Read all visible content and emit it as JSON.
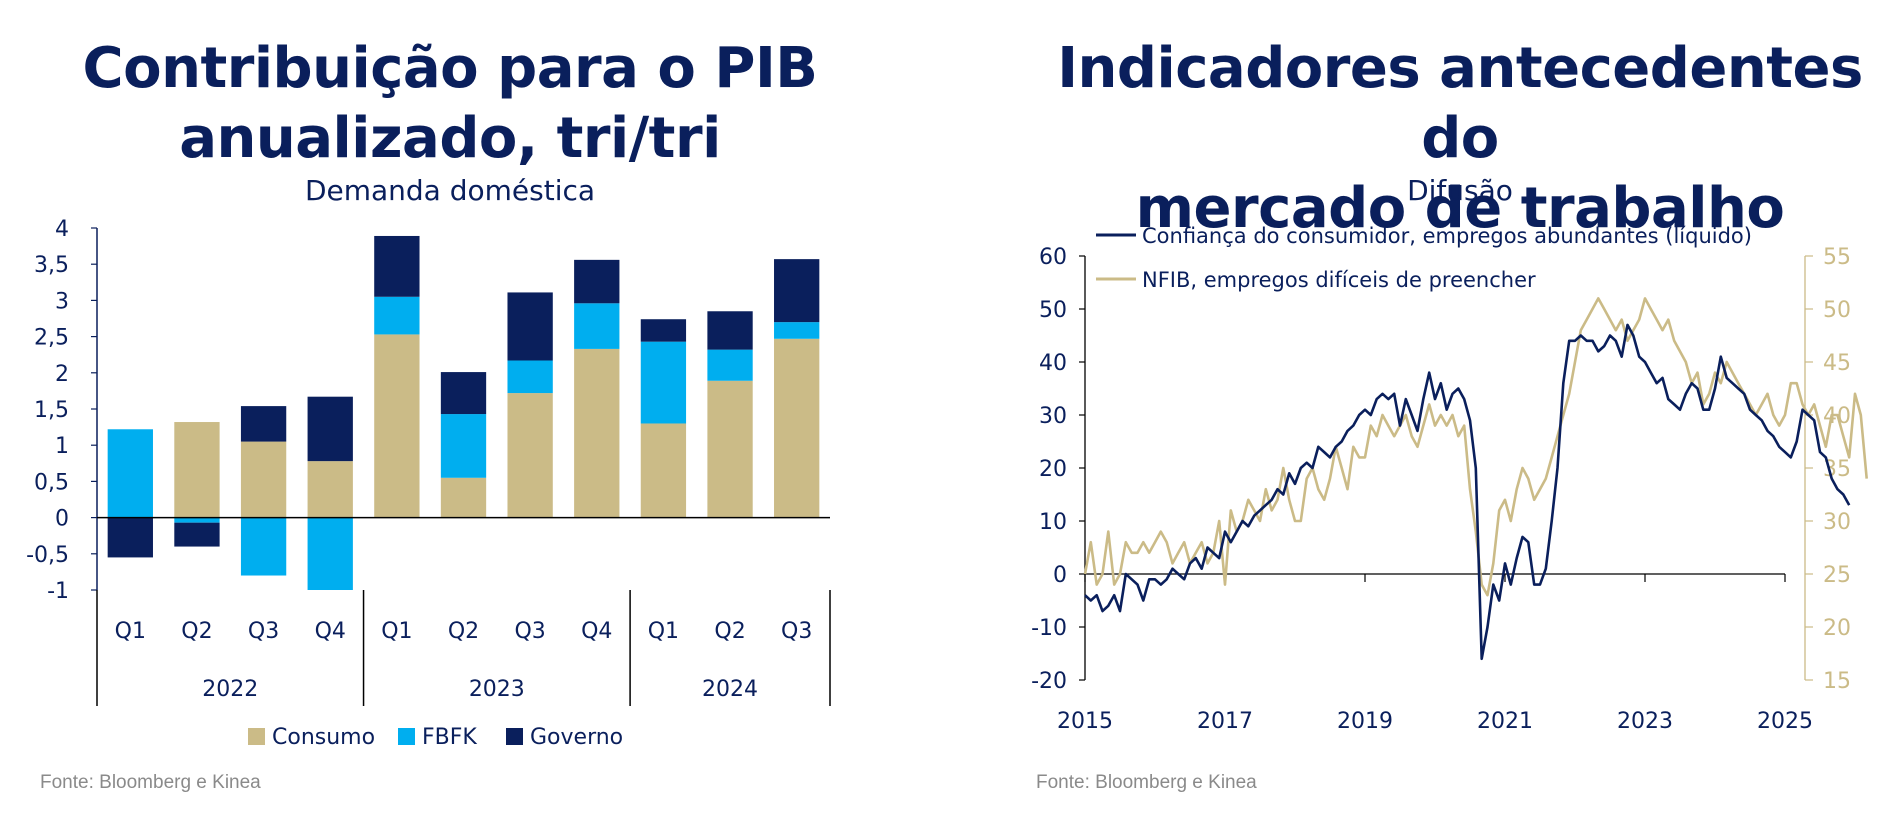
{
  "left": {
    "title": "Contribuição para o PIB\nanualizado, tri/tri",
    "subtitle": "Demanda doméstica",
    "source": "Fonte: Bloomberg e Kinea"
  },
  "right": {
    "title": "Indicadores antecedentes do\nmercado de trabalho",
    "subtitle": "Difusão",
    "source": "Fonte: Bloomberg e Kinea"
  },
  "chart_data": [
    {
      "type": "bar",
      "stacked": true,
      "title": "Contribuição para o PIB anualizado, tri/tri",
      "subtitle": "Demanda doméstica",
      "categories": [
        "Q1",
        "Q2",
        "Q3",
        "Q4",
        "Q1",
        "Q2",
        "Q3",
        "Q4",
        "Q1",
        "Q2",
        "Q3"
      ],
      "groups": [
        {
          "label": "2022",
          "count": 4
        },
        {
          "label": "2023",
          "count": 4
        },
        {
          "label": "2024",
          "count": 3
        }
      ],
      "series": [
        {
          "name": "Consumo",
          "color": "#cbbb87",
          "values": [
            0,
            1.32,
            1.05,
            0.78,
            2.53,
            0.55,
            1.72,
            2.33,
            1.3,
            1.89,
            2.47
          ]
        },
        {
          "name": "FBFK",
          "color": "#00aeef",
          "values": [
            1.22,
            -0.07,
            -0.8,
            -1.0,
            0.52,
            0.88,
            0.45,
            0.63,
            1.13,
            0.43,
            0.23
          ]
        },
        {
          "name": "Governo",
          "color": "#0a1f5c",
          "values": [
            -0.55,
            -0.33,
            0.49,
            0.89,
            0.84,
            0.58,
            0.94,
            0.6,
            0.31,
            0.53,
            0.87
          ]
        }
      ],
      "yticks": [
        "4",
        "3,5",
        "3",
        "2,5",
        "2",
        "1,5",
        "1",
        "0,5",
        "0",
        "-0,5",
        "-1"
      ],
      "ylim": [
        -1,
        4
      ],
      "legend_position": "bottom"
    },
    {
      "type": "line",
      "title": "Indicadores antecedentes do mercado de trabalho",
      "subtitle": "Difusão",
      "x_start": "2015-01",
      "x_step": "month",
      "xticks": [
        "2015",
        "2017",
        "2019",
        "2021",
        "2023",
        "2025"
      ],
      "y_left_ticks": [
        "60",
        "50",
        "40",
        "30",
        "20",
        "10",
        "0",
        "-10",
        "-20"
      ],
      "y_left_lim": [
        -20,
        60
      ],
      "y_right_ticks": [
        "55",
        "50",
        "45",
        "40",
        "35",
        "30",
        "25",
        "20",
        "15"
      ],
      "y_right_lim": [
        15,
        55
      ],
      "legend_position": "top-left",
      "series": [
        {
          "name": "Confiança do consumidor, empregos abundantes (líquido)",
          "color": "#0a1f5c",
          "axis": "left",
          "values": [
            -4,
            -5,
            -4,
            -7,
            -6,
            -4,
            -7,
            0,
            -1,
            -2,
            -5,
            -1,
            -1,
            -2,
            -1,
            1,
            0,
            -1,
            2,
            3,
            1,
            5,
            4,
            3,
            8,
            6,
            8,
            10,
            9,
            11,
            12,
            13,
            14,
            16,
            15,
            19,
            17,
            20,
            21,
            20,
            24,
            23,
            22,
            24,
            25,
            27,
            28,
            30,
            31,
            30,
            33,
            34,
            33,
            34,
            28,
            33,
            30,
            27,
            33,
            38,
            33,
            36,
            31,
            34,
            35,
            33,
            29,
            20,
            -16,
            -10,
            -2,
            -5,
            2,
            -2,
            3,
            7,
            6,
            -2,
            -2,
            1,
            10,
            20,
            36,
            44,
            44,
            45,
            44,
            44,
            42,
            43,
            45,
            44,
            41,
            47,
            45,
            41,
            40,
            38,
            36,
            37,
            33,
            32,
            31,
            34,
            36,
            35,
            31,
            31,
            35,
            41,
            37,
            36,
            35,
            34,
            31,
            30,
            29,
            27,
            26,
            24,
            23,
            22,
            25,
            31,
            30,
            29,
            23,
            22,
            18,
            16,
            15,
            13
          ]
        },
        {
          "name": "NFIB, empregos difíceis de preencher",
          "color": "#cbbb87",
          "axis": "right",
          "values": [
            25,
            28,
            24,
            25,
            29,
            24,
            25,
            28,
            27,
            27,
            28,
            27,
            28,
            29,
            28,
            26,
            27,
            28,
            26,
            27,
            28,
            26,
            27,
            30,
            24,
            31,
            29,
            30,
            32,
            31,
            30,
            33,
            31,
            32,
            35,
            32,
            30,
            30,
            34,
            35,
            33,
            32,
            34,
            37,
            35,
            33,
            37,
            36,
            36,
            39,
            38,
            40,
            39,
            38,
            39,
            40,
            38,
            37,
            39,
            41,
            39,
            40,
            39,
            40,
            38,
            39,
            33,
            29,
            24,
            23,
            26,
            31,
            32,
            30,
            33,
            35,
            34,
            32,
            33,
            34,
            36,
            38,
            40,
            42,
            45,
            48,
            49,
            50,
            51,
            50,
            49,
            48,
            49,
            47,
            48,
            49,
            51,
            50,
            49,
            48,
            49,
            47,
            46,
            45,
            43,
            44,
            41,
            42,
            44,
            43,
            45,
            44,
            43,
            42,
            41,
            40,
            41,
            42,
            40,
            39,
            40,
            43,
            43,
            41,
            40,
            41,
            39,
            37,
            40,
            40,
            38,
            36,
            42,
            40,
            34
          ]
        }
      ]
    }
  ]
}
